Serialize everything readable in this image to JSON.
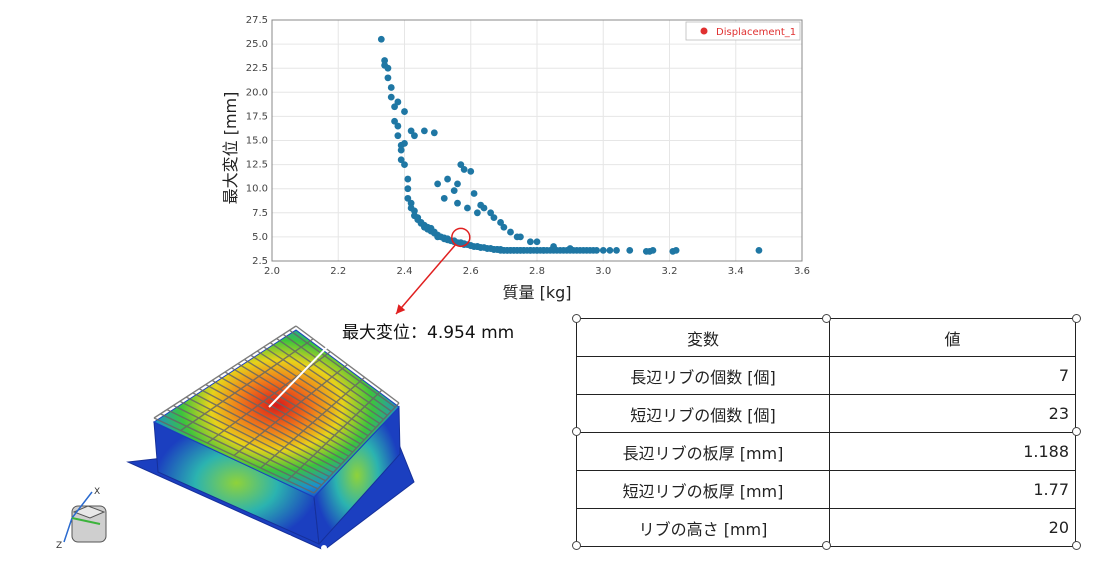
{
  "chart_data": {
    "type": "scatter",
    "xlabel": "質量 [kg]",
    "ylabel": "最大変位 [mm]",
    "xlim": [
      2.0,
      3.6
    ],
    "ylim": [
      2.5,
      27.5
    ],
    "xticks": [
      "2.0",
      "2.2",
      "2.4",
      "2.6",
      "2.8",
      "3.0",
      "3.2",
      "3.4",
      "3.6"
    ],
    "yticks": [
      "2.5",
      "5.0",
      "7.5",
      "10.0",
      "12.5",
      "15.0",
      "17.5",
      "20.0",
      "22.5",
      "25.0",
      "27.5"
    ],
    "grid": true,
    "legend_position": "top-right",
    "marker_color": "#1f77a4",
    "series": [
      {
        "name": "Displacement_1",
        "x": [
          2.33,
          2.34,
          2.34,
          2.35,
          2.35,
          2.36,
          2.36,
          2.37,
          2.37,
          2.38,
          2.38,
          2.38,
          2.39,
          2.39,
          2.39,
          2.4,
          2.4,
          2.4,
          2.41,
          2.41,
          2.41,
          2.42,
          2.42,
          2.43,
          2.43,
          2.44,
          2.44,
          2.45,
          2.45,
          2.46,
          2.46,
          2.47,
          2.47,
          2.48,
          2.48,
          2.49,
          2.49,
          2.5,
          2.5,
          2.51,
          2.52,
          2.52,
          2.53,
          2.53,
          2.54,
          2.55,
          2.55,
          2.56,
          2.57,
          2.57,
          2.58,
          2.58,
          2.59,
          2.6,
          2.6,
          2.61,
          2.62,
          2.62,
          2.63,
          2.63,
          2.64,
          2.65,
          2.65,
          2.66,
          2.66,
          2.67,
          2.67,
          2.68,
          2.68,
          2.69,
          2.69,
          2.7,
          2.7,
          2.71,
          2.71,
          2.72,
          2.72,
          2.73,
          2.73,
          2.74,
          2.74,
          2.75,
          2.75,
          2.76,
          2.76,
          2.77,
          2.78,
          2.78,
          2.79,
          2.8,
          2.8,
          2.81,
          2.82,
          2.82,
          2.83,
          2.84,
          2.85,
          2.86,
          2.87,
          2.88,
          2.89,
          2.9,
          2.91,
          2.92,
          2.93,
          2.94,
          2.95,
          2.96,
          2.97,
          2.98,
          3.0,
          3.02,
          3.04,
          3.08,
          3.13,
          3.14,
          3.15,
          3.21,
          3.22,
          3.47,
          2.42,
          2.43,
          2.46,
          2.49,
          2.53,
          2.56,
          2.58,
          2.61,
          2.64,
          2.67,
          2.7,
          2.74,
          2.78,
          2.56,
          2.59,
          2.62,
          2.5,
          2.52,
          2.55,
          2.57,
          2.6,
          2.63,
          2.66,
          2.69,
          2.72,
          2.75,
          2.8,
          2.85,
          2.9
        ],
        "y": [
          25.5,
          23.3,
          22.8,
          22.5,
          21.5,
          20.5,
          19.5,
          18.5,
          17.0,
          16.5,
          15.5,
          19.0,
          14.5,
          14.0,
          13.0,
          14.7,
          12.5,
          18.0,
          11.0,
          10.0,
          9.0,
          8.5,
          8.0,
          7.7,
          7.2,
          7.0,
          6.8,
          6.5,
          6.4,
          6.2,
          6.0,
          6.0,
          5.8,
          5.9,
          5.6,
          5.5,
          5.4,
          5.2,
          5.0,
          5.0,
          4.9,
          4.8,
          4.8,
          4.7,
          4.6,
          4.6,
          4.5,
          4.4,
          4.4,
          4.3,
          4.3,
          4.2,
          4.2,
          4.1,
          4.1,
          4.0,
          4.0,
          4.0,
          3.9,
          3.9,
          3.9,
          3.8,
          3.8,
          3.8,
          3.8,
          3.7,
          3.7,
          3.7,
          3.7,
          3.7,
          3.6,
          3.6,
          3.6,
          3.6,
          3.6,
          3.6,
          3.6,
          3.6,
          3.6,
          3.6,
          3.6,
          3.6,
          3.6,
          3.6,
          3.6,
          3.6,
          3.6,
          3.6,
          3.6,
          3.6,
          3.6,
          3.6,
          3.6,
          3.6,
          3.6,
          3.6,
          3.6,
          3.6,
          3.6,
          3.6,
          3.6,
          3.6,
          3.6,
          3.6,
          3.6,
          3.6,
          3.6,
          3.6,
          3.6,
          3.6,
          3.6,
          3.6,
          3.6,
          3.6,
          3.5,
          3.5,
          3.6,
          3.5,
          3.6,
          3.6,
          16.0,
          15.5,
          16.0,
          15.8,
          11.0,
          10.5,
          12.0,
          9.5,
          8.0,
          7.0,
          6.0,
          5.0,
          4.5,
          8.5,
          8.0,
          7.5,
          10.5,
          9.0,
          9.8,
          12.5,
          11.8,
          8.3,
          7.5,
          6.5,
          5.5,
          5.0,
          4.5,
          4.0,
          3.8
        ]
      }
    ],
    "highlight_point": {
      "x": 2.57,
      "y": 4.954
    }
  },
  "annotation": {
    "label": "最大変位：4.954 mm",
    "circle_color": "#e02020",
    "arrow_color": "#e02020"
  },
  "axis_widget": {
    "x_label": "X",
    "z_label": "Z"
  },
  "table": {
    "headers": [
      "変数",
      "値"
    ],
    "rows": [
      {
        "name": "長辺リブの個数 [個]",
        "value": "7"
      },
      {
        "name": "短辺リブの個数 [個]",
        "value": "23"
      },
      {
        "name": "長辺リブの板厚 [mm]",
        "value": "1.188"
      },
      {
        "name": "短辺リブの板厚 [mm]",
        "value": "1.77"
      },
      {
        "name": "リブの高さ [mm]",
        "value": "20"
      }
    ]
  }
}
